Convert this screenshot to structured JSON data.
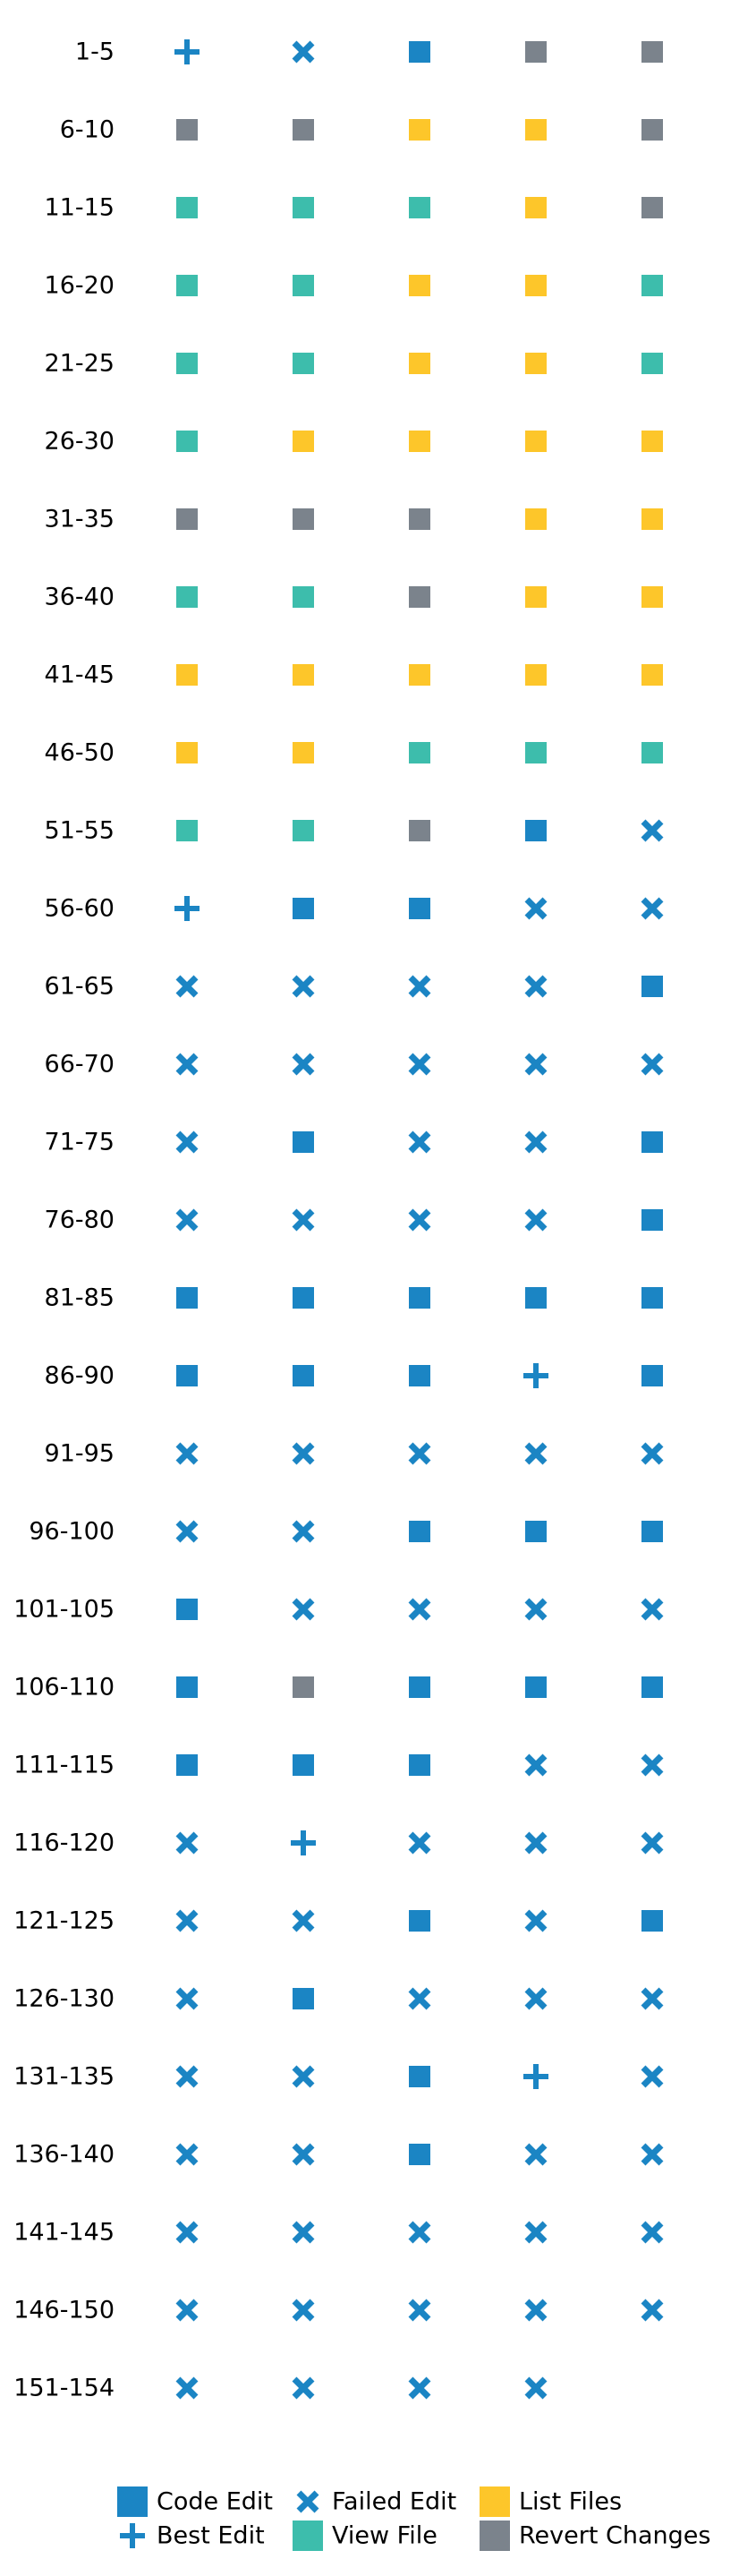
{
  "chart_data": {
    "type": "scatter",
    "title": "",
    "xlabel": "",
    "ylabel": "",
    "grid": false,
    "legend_position": "bottom",
    "columns": 5,
    "row_labels": [
      "1-5",
      "6-10",
      "11-15",
      "16-20",
      "21-25",
      "26-30",
      "31-35",
      "36-40",
      "41-45",
      "46-50",
      "51-55",
      "56-60",
      "61-65",
      "66-70",
      "71-75",
      "76-80",
      "81-85",
      "86-90",
      "91-95",
      "96-100",
      "101-105",
      "106-110",
      "111-115",
      "116-120",
      "121-125",
      "126-130",
      "131-135",
      "136-140",
      "141-145",
      "146-150",
      "151-154"
    ],
    "rows": [
      [
        "best",
        "fail",
        "code",
        "revert",
        "revert"
      ],
      [
        "revert",
        "revert",
        "list",
        "list",
        "revert"
      ],
      [
        "view",
        "view",
        "view",
        "list",
        "revert"
      ],
      [
        "view",
        "view",
        "list",
        "list",
        "view"
      ],
      [
        "view",
        "view",
        "list",
        "list",
        "view"
      ],
      [
        "view",
        "list",
        "list",
        "list",
        "list"
      ],
      [
        "revert",
        "revert",
        "revert",
        "list",
        "list"
      ],
      [
        "view",
        "view",
        "revert",
        "list",
        "list"
      ],
      [
        "list",
        "list",
        "list",
        "list",
        "list"
      ],
      [
        "list",
        "list",
        "view",
        "view",
        "view"
      ],
      [
        "view",
        "view",
        "revert",
        "code",
        "fail"
      ],
      [
        "best",
        "code",
        "code",
        "fail",
        "fail"
      ],
      [
        "fail",
        "fail",
        "fail",
        "fail",
        "code"
      ],
      [
        "fail",
        "fail",
        "fail",
        "fail",
        "fail"
      ],
      [
        "fail",
        "code",
        "fail",
        "fail",
        "code"
      ],
      [
        "fail",
        "fail",
        "fail",
        "fail",
        "code"
      ],
      [
        "code",
        "code",
        "code",
        "code",
        "code"
      ],
      [
        "code",
        "code",
        "code",
        "best",
        "code"
      ],
      [
        "fail",
        "fail",
        "fail",
        "fail",
        "fail"
      ],
      [
        "fail",
        "fail",
        "code",
        "code",
        "code"
      ],
      [
        "code",
        "fail",
        "fail",
        "fail",
        "fail"
      ],
      [
        "code",
        "revert",
        "code",
        "code",
        "code"
      ],
      [
        "code",
        "code",
        "code",
        "fail",
        "fail"
      ],
      [
        "fail",
        "best",
        "fail",
        "fail",
        "fail"
      ],
      [
        "fail",
        "fail",
        "code",
        "fail",
        "code"
      ],
      [
        "fail",
        "code",
        "fail",
        "fail",
        "fail"
      ],
      [
        "fail",
        "fail",
        "code",
        "best",
        "fail"
      ],
      [
        "fail",
        "fail",
        "code",
        "fail",
        "fail"
      ],
      [
        "fail",
        "fail",
        "fail",
        "fail",
        "fail"
      ],
      [
        "fail",
        "fail",
        "fail",
        "fail",
        "fail"
      ],
      [
        "fail",
        "fail",
        "fail",
        "fail"
      ]
    ],
    "categories": {
      "code": {
        "label": "Code Edit",
        "marker": "square",
        "color": "#1b85c4"
      },
      "best": {
        "label": "Best Edit",
        "marker": "plus",
        "color": "#1b85c4"
      },
      "fail": {
        "label": "Failed Edit",
        "marker": "x",
        "color": "#1b85c4"
      },
      "view": {
        "label": "View File",
        "marker": "square",
        "color": "#3dbdac"
      },
      "list": {
        "label": "List Files",
        "marker": "square",
        "color": "#fdc62a"
      },
      "revert": {
        "label": "Revert Changes",
        "marker": "square",
        "color": "#7b838c"
      }
    },
    "legend_order": [
      "code",
      "fail",
      "list",
      "best",
      "view",
      "revert"
    ]
  }
}
